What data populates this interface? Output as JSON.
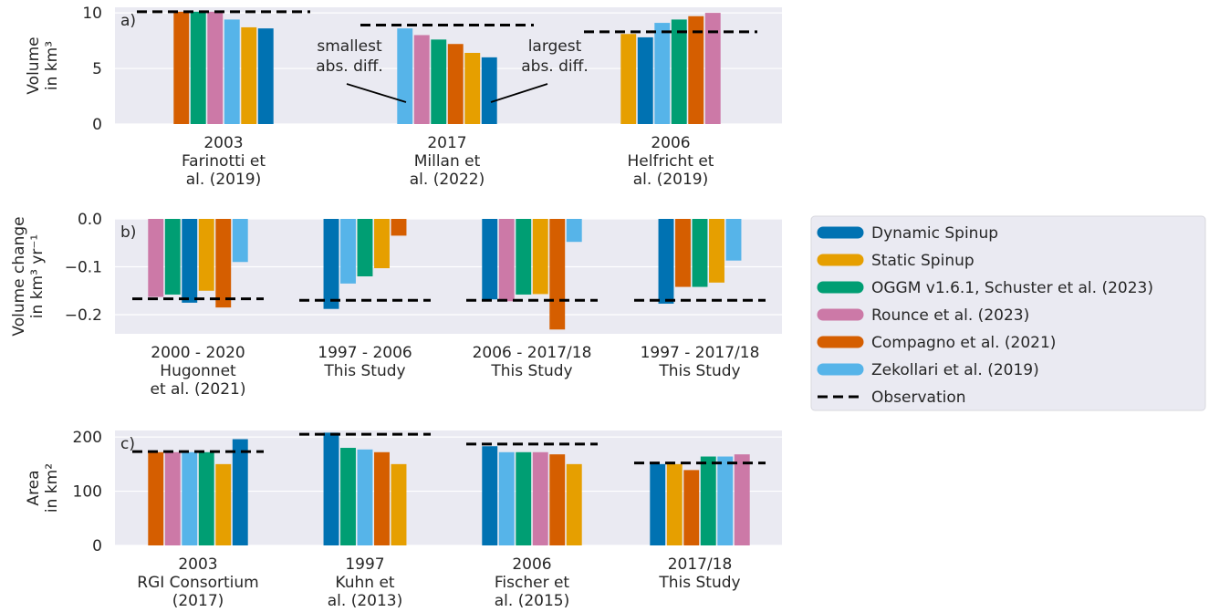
{
  "legend": {
    "entries": [
      {
        "key": "dyn",
        "label": "Dynamic Spinup",
        "color": "#0072b2"
      },
      {
        "key": "stat",
        "label": "Static Spinup",
        "color": "#e69f00"
      },
      {
        "key": "oggm",
        "label": "OGGM v1.6.1, Schuster et al. (2023)",
        "color": "#009e73"
      },
      {
        "key": "rounce",
        "label": "Rounce et al. (2023)",
        "color": "#cc79a7"
      },
      {
        "key": "compagno",
        "label": "Compagno et al. (2021)",
        "color": "#d55e00"
      },
      {
        "key": "zekollari",
        "label": "Zekollari et al. (2019)",
        "color": "#56b4e9"
      },
      {
        "key": "obs",
        "label": "Observation",
        "color": "#000000"
      }
    ]
  },
  "chart_data": [
    {
      "type": "bar",
      "panel_label": "a)",
      "ylabel": [
        "Volume",
        "in km³"
      ],
      "ylim": [
        0,
        10.5
      ],
      "yticks": [
        0,
        5,
        10
      ],
      "ytick_labels": [
        "0",
        "5",
        "10"
      ],
      "grid": true,
      "categories": [
        {
          "lines": [
            "2003",
            "Farinotti et",
            "al. (2019)"
          ],
          "bars": [
            {
              "series": "compagno",
              "value": 10.1
            },
            {
              "series": "oggm",
              "value": 10.1
            },
            {
              "series": "rounce",
              "value": 10.1
            },
            {
              "series": "zekollari",
              "value": 9.4
            },
            {
              "series": "stat",
              "value": 8.7
            },
            {
              "series": "dyn",
              "value": 8.6
            }
          ],
          "observation": 10.1
        },
        {
          "lines": [
            "2017",
            "Millan et",
            "al. (2022)"
          ],
          "bars": [
            {
              "series": "zekollari",
              "value": 8.6
            },
            {
              "series": "rounce",
              "value": 8.0
            },
            {
              "series": "oggm",
              "value": 7.6
            },
            {
              "series": "compagno",
              "value": 7.2
            },
            {
              "series": "stat",
              "value": 6.4
            },
            {
              "series": "dyn",
              "value": 6.0
            }
          ],
          "observation": 8.9
        },
        {
          "lines": [
            "2006",
            "Helfricht et",
            "al. (2019)"
          ],
          "bars": [
            {
              "series": "stat",
              "value": 8.1
            },
            {
              "series": "dyn",
              "value": 7.8
            },
            {
              "series": "zekollari",
              "value": 9.1
            },
            {
              "series": "oggm",
              "value": 9.4
            },
            {
              "series": "compagno",
              "value": 9.7
            },
            {
              "series": "rounce",
              "value": 10.0
            }
          ],
          "observation": 8.3
        }
      ],
      "annotations": [
        {
          "lines": [
            "smallest",
            "abs. diff."
          ]
        },
        {
          "lines": [
            "largest",
            "abs. diff."
          ]
        }
      ]
    },
    {
      "type": "bar",
      "panel_label": "b)",
      "ylabel": [
        "Volume change",
        "in km³ yr⁻¹"
      ],
      "ylim": [
        -0.24,
        0.0
      ],
      "yticks": [
        0.0,
        -0.1,
        -0.2
      ],
      "ytick_labels": [
        "0.0",
        "−0.1",
        "−0.2"
      ],
      "grid": true,
      "categories": [
        {
          "lines": [
            "2000 - 2020",
            "Hugonnet",
            "et al. (2021)"
          ],
          "bars": [
            {
              "series": "rounce",
              "value": -0.163
            },
            {
              "series": "oggm",
              "value": -0.158
            },
            {
              "series": "dyn",
              "value": -0.175
            },
            {
              "series": "stat",
              "value": -0.15
            },
            {
              "series": "compagno",
              "value": -0.185
            },
            {
              "series": "zekollari",
              "value": -0.09
            }
          ],
          "observation": -0.167
        },
        {
          "lines": [
            "1997 - 2006",
            "This Study"
          ],
          "bars": [
            {
              "series": "dyn",
              "value": -0.188
            },
            {
              "series": "zekollari",
              "value": -0.135
            },
            {
              "series": "oggm",
              "value": -0.12
            },
            {
              "series": "stat",
              "value": -0.103
            },
            {
              "series": "compagno",
              "value": -0.035
            }
          ],
          "observation": -0.17
        },
        {
          "lines": [
            "2006 - 2017/18",
            "This Study"
          ],
          "bars": [
            {
              "series": "dyn",
              "value": -0.168
            },
            {
              "series": "rounce",
              "value": -0.172
            },
            {
              "series": "oggm",
              "value": -0.158
            },
            {
              "series": "stat",
              "value": -0.157
            },
            {
              "series": "compagno",
              "value": -0.231
            },
            {
              "series": "zekollari",
              "value": -0.048
            }
          ],
          "observation": -0.17
        },
        {
          "lines": [
            "1997 - 2017/18",
            "This Study"
          ],
          "bars": [
            {
              "series": "dyn",
              "value": -0.177
            },
            {
              "series": "compagno",
              "value": -0.142
            },
            {
              "series": "oggm",
              "value": -0.142
            },
            {
              "series": "stat",
              "value": -0.133
            },
            {
              "series": "zekollari",
              "value": -0.087
            }
          ],
          "observation": -0.17
        }
      ]
    },
    {
      "type": "bar",
      "panel_label": "c)",
      "ylabel": [
        "Area",
        "in km²"
      ],
      "ylim": [
        0,
        212
      ],
      "yticks": [
        0,
        100,
        200
      ],
      "ytick_labels": [
        "0",
        "100",
        "200"
      ],
      "grid": true,
      "categories": [
        {
          "lines": [
            "2003",
            "RGI Consortium",
            "(2017)"
          ],
          "bars": [
            {
              "series": "compagno",
              "value": 172
            },
            {
              "series": "rounce",
              "value": 172
            },
            {
              "series": "zekollari",
              "value": 172
            },
            {
              "series": "oggm",
              "value": 172
            },
            {
              "series": "stat",
              "value": 150
            },
            {
              "series": "dyn",
              "value": 196
            }
          ],
          "observation": 173
        },
        {
          "lines": [
            "1997",
            "Kuhn et",
            "al. (2013)"
          ],
          "bars": [
            {
              "series": "dyn",
              "value": 208
            },
            {
              "series": "oggm",
              "value": 180
            },
            {
              "series": "zekollari",
              "value": 177
            },
            {
              "series": "compagno",
              "value": 172
            },
            {
              "series": "stat",
              "value": 150
            }
          ],
          "observation": 205
        },
        {
          "lines": [
            "2006",
            "Fischer et",
            "al. (2015)"
          ],
          "bars": [
            {
              "series": "dyn",
              "value": 183
            },
            {
              "series": "zekollari",
              "value": 172
            },
            {
              "series": "oggm",
              "value": 172
            },
            {
              "series": "rounce",
              "value": 172
            },
            {
              "series": "compagno",
              "value": 168
            },
            {
              "series": "stat",
              "value": 150
            }
          ],
          "observation": 187
        },
        {
          "lines": [
            "2017/18",
            "This Study"
          ],
          "bars": [
            {
              "series": "dyn",
              "value": 150
            },
            {
              "series": "stat",
              "value": 150
            },
            {
              "series": "compagno",
              "value": 139
            },
            {
              "series": "oggm",
              "value": 164
            },
            {
              "series": "zekollari",
              "value": 164
            },
            {
              "series": "rounce",
              "value": 168
            }
          ],
          "observation": 152
        }
      ]
    }
  ]
}
